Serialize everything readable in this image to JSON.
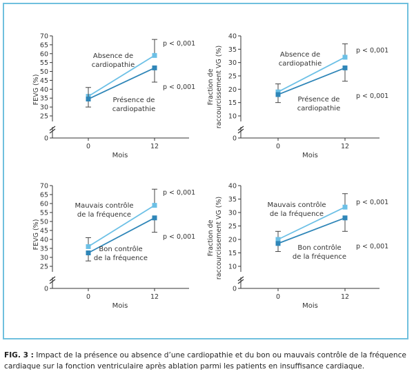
{
  "figure": {
    "caption_label": "FIG. 3 :",
    "caption_text": "Impact de la présence ou absence d’une cardiopathie et du bon ou mauvais contrôle de la fréquence cardiaque sur la fonction ventriculaire après ablation parmi les patients en insuffisance cardiaque."
  },
  "colors": {
    "series_light": "#6cc0e6",
    "series_dark": "#2f86b8",
    "axis": "#333333",
    "border": "#6fc0de"
  },
  "chart_data": [
    {
      "type": "line",
      "title": "",
      "xlabel": "Mois",
      "ylabel": "FEVG (%)",
      "x": [
        "0",
        "12"
      ],
      "ylim": [
        25,
        70
      ],
      "yticks": [
        "0",
        "25",
        "30",
        "35",
        "40",
        "45",
        "50",
        "55",
        "60",
        "65",
        "70"
      ],
      "axis_break": true,
      "series": [
        {
          "name": "Absence de cardiopathie",
          "values": [
            36,
            59
          ],
          "error_low": [
            null,
            null
          ],
          "error_high": [
            null,
            68
          ],
          "color": "series_light",
          "pvalue": "p < 0,001"
        },
        {
          "name": "Présence de cardiopathie",
          "values": [
            34.5,
            52
          ],
          "error_low": [
            30,
            44
          ],
          "error_high": [
            41,
            null
          ],
          "color": "series_dark",
          "pvalue": "p < 0,001"
        }
      ]
    },
    {
      "type": "line",
      "title": "",
      "xlabel": "Mois",
      "ylabel": "Fraction de raccourcissement VG (%)",
      "x": [
        "0",
        "12"
      ],
      "ylim": [
        10,
        40
      ],
      "yticks": [
        "0",
        "10",
        "15",
        "20",
        "25",
        "30",
        "35",
        "40"
      ],
      "axis_break": true,
      "series": [
        {
          "name": "Absence de cardiopathie",
          "values": [
            19,
            32
          ],
          "error_low": [
            null,
            null
          ],
          "error_high": [
            22,
            37
          ],
          "color": "series_light",
          "pvalue": "p < 0,001"
        },
        {
          "name": "Présence de cardiopathie",
          "values": [
            18,
            28
          ],
          "error_low": [
            15,
            23
          ],
          "error_high": [
            null,
            null
          ],
          "color": "series_dark",
          "pvalue": "p < 0,001"
        }
      ]
    },
    {
      "type": "line",
      "title": "",
      "xlabel": "Mois",
      "ylabel": "FEVG (%)",
      "x": [
        "0",
        "12"
      ],
      "ylim": [
        25,
        70
      ],
      "yticks": [
        "0",
        "25",
        "30",
        "35",
        "40",
        "45",
        "50",
        "55",
        "60",
        "65",
        "70"
      ],
      "axis_break": true,
      "series": [
        {
          "name": "Mauvais contrôle de la fréquence",
          "values": [
            36,
            59
          ],
          "error_low": [
            null,
            null
          ],
          "error_high": [
            41,
            68
          ],
          "color": "series_light",
          "pvalue": "p < 0,001"
        },
        {
          "name": "Bon contrôle de la fréquence",
          "values": [
            32.5,
            52
          ],
          "error_low": [
            28,
            44
          ],
          "error_high": [
            null,
            null
          ],
          "color": "series_dark",
          "pvalue": "p < 0,001"
        }
      ]
    },
    {
      "type": "line",
      "title": "",
      "xlabel": "Mois",
      "ylabel": "Fraction de raccourcissement VG (%)",
      "x": [
        "0",
        "12"
      ],
      "ylim": [
        10,
        40
      ],
      "yticks": [
        "0",
        "10",
        "15",
        "20",
        "25",
        "30",
        "35",
        "40"
      ],
      "axis_break": true,
      "series": [
        {
          "name": "Mauvais contrôle de la fréquence",
          "values": [
            20,
            32
          ],
          "error_low": [
            null,
            null
          ],
          "error_high": [
            23,
            37
          ],
          "color": "series_light",
          "pvalue": "p < 0,001"
        },
        {
          "name": "Bon contrôle de la fréquence",
          "values": [
            18.5,
            28
          ],
          "error_low": [
            15.5,
            23
          ],
          "error_high": [
            null,
            null
          ],
          "color": "series_dark",
          "pvalue": "p < 0,001"
        }
      ]
    }
  ]
}
